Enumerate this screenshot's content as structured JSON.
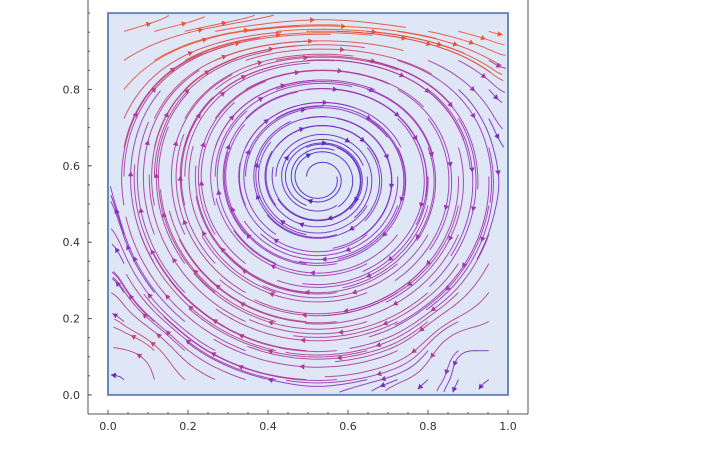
{
  "chart_data": {
    "type": "streamline",
    "title": "",
    "xlabel": "",
    "ylabel": "",
    "xlim": [
      -0.05,
      1.05
    ],
    "ylim": [
      -0.05,
      1.05
    ],
    "x_ticks": [
      {
        "value": 0.0,
        "label": "0.0"
      },
      {
        "value": 0.2,
        "label": "0.2"
      },
      {
        "value": 0.4,
        "label": "0.4"
      },
      {
        "value": 0.6,
        "label": "0.6"
      },
      {
        "value": 0.8,
        "label": "0.8"
      },
      {
        "value": 1.0,
        "label": "1.0"
      }
    ],
    "y_ticks": [
      {
        "value": 0.0,
        "label": "0.0"
      },
      {
        "value": 0.2,
        "label": "0.2"
      },
      {
        "value": 0.4,
        "label": "0.4"
      },
      {
        "value": 0.6,
        "label": "0.6"
      },
      {
        "value": 0.8,
        "label": "0.8"
      }
    ],
    "domain_box": {
      "x": [
        0,
        1
      ],
      "y": [
        0,
        1
      ]
    },
    "vortices": [
      {
        "x": 0.53,
        "y": 0.57,
        "rotation": "clockwise"
      },
      {
        "x": 0.08,
        "y": 0.08,
        "rotation": "counterclockwise"
      },
      {
        "x": 0.88,
        "y": 0.12,
        "rotation": "counterclockwise"
      }
    ],
    "color_scale": {
      "low": "#2a1fc9",
      "mid": "#9a33b8",
      "high": "#f2562a"
    },
    "background_color": "#dfe7f7",
    "box_color": "#6c8ab8",
    "grid": false
  }
}
